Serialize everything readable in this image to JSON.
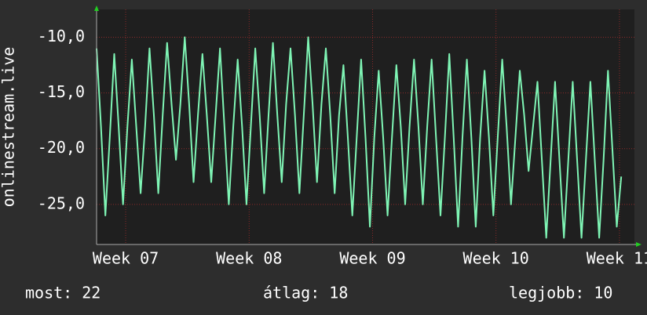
{
  "chart_data": {
    "type": "line",
    "y_label": "onlinestream.live",
    "x": [
      0,
      0.25,
      0.5,
      0.75,
      1,
      1.25,
      1.5,
      1.75,
      2,
      2.25,
      2.5,
      2.75,
      3,
      3.25,
      3.5,
      3.75,
      4,
      4.25,
      4.5,
      4.75,
      5,
      5.25,
      5.5,
      5.75,
      6,
      6.25,
      6.5,
      6.75,
      7,
      7.25,
      7.5,
      7.75,
      8,
      8.25,
      8.5,
      8.75,
      9,
      9.25,
      9.5,
      9.75,
      10,
      10.25,
      10.5,
      10.75,
      11,
      11.25,
      11.5,
      11.75,
      12,
      12.25,
      12.5,
      12.75,
      13,
      13.25,
      13.5,
      13.75,
      14,
      14.25,
      14.5,
      14.75,
      15,
      15.25,
      15.5,
      15.75,
      16,
      16.25,
      16.5,
      16.75,
      17,
      17.25,
      17.5,
      17.75,
      18,
      18.25,
      18.5,
      18.75,
      19,
      19.25,
      19.5,
      19.75,
      20,
      20.25,
      20.5,
      20.75,
      21,
      21.25,
      21.5,
      21.75,
      22,
      22.25,
      22.5,
      22.75,
      23,
      23.25,
      23.5,
      23.75,
      24,
      24.25,
      24.5,
      24.75,
      25,
      25.25,
      25.5,
      25.75,
      26,
      26.25,
      26.5,
      26.75,
      27,
      27.25,
      27.5,
      27.75,
      28,
      28.25,
      28.5,
      28.75,
      29,
      29.25,
      29.5,
      29.75
    ],
    "series": [
      {
        "name": "onlinestream.live",
        "color": "#7ff5b5",
        "values": [
          -11,
          -18,
          -26,
          -19,
          -11.5,
          -18,
          -25,
          -18,
          -12,
          -18,
          -24,
          -18,
          -11,
          -17,
          -24,
          -17,
          -10.5,
          -16,
          -21,
          -16,
          -10,
          -16,
          -23,
          -17,
          -11.5,
          -17,
          -23,
          -17,
          -11,
          -18,
          -25,
          -18,
          -12,
          -18,
          -25,
          -18,
          -11,
          -17,
          -24,
          -17,
          -10.5,
          -17,
          -23,
          -16,
          -11,
          -17,
          -24,
          -17,
          -10,
          -16,
          -23,
          -16,
          -11,
          -17,
          -24,
          -17,
          -12.5,
          -19,
          -26,
          -19,
          -12,
          -19,
          -27,
          -19,
          -13,
          -19,
          -26,
          -19,
          -12.5,
          -18,
          -25,
          -18,
          -12,
          -18,
          -25,
          -18,
          -12,
          -19,
          -26,
          -19,
          -11.5,
          -19,
          -27,
          -19,
          -12,
          -19,
          -27,
          -19,
          -13,
          -19,
          -26,
          -19,
          -12,
          -18,
          -25,
          -19,
          -13,
          -17,
          -22,
          -18,
          -14,
          -21,
          -28,
          -21,
          -14,
          -21,
          -28,
          -21,
          -14,
          -21,
          -28,
          -21,
          -14,
          -21,
          -28,
          -21,
          -13,
          -20,
          -27,
          -22.5
        ]
      }
    ],
    "xlim": [
      0,
      30.5
    ],
    "xticks": [
      {
        "value": 1.65,
        "label": "Week 07"
      },
      {
        "value": 8.65,
        "label": "Week 08"
      },
      {
        "value": 15.65,
        "label": "Week 09"
      },
      {
        "value": 22.65,
        "label": "Week 10"
      },
      {
        "value": 29.65,
        "label": "Week 11"
      }
    ],
    "ylim": [
      -28.6,
      -7.5
    ],
    "yticks": [
      {
        "value": -10,
        "label": "-10,0"
      },
      {
        "value": -15,
        "label": "-15,0"
      },
      {
        "value": -20,
        "label": "-20,0"
      },
      {
        "value": -25,
        "label": "-25,0"
      }
    ],
    "grid": true,
    "footer": [
      "most: 22",
      "átlag: 18",
      "legjobb: 10"
    ]
  }
}
